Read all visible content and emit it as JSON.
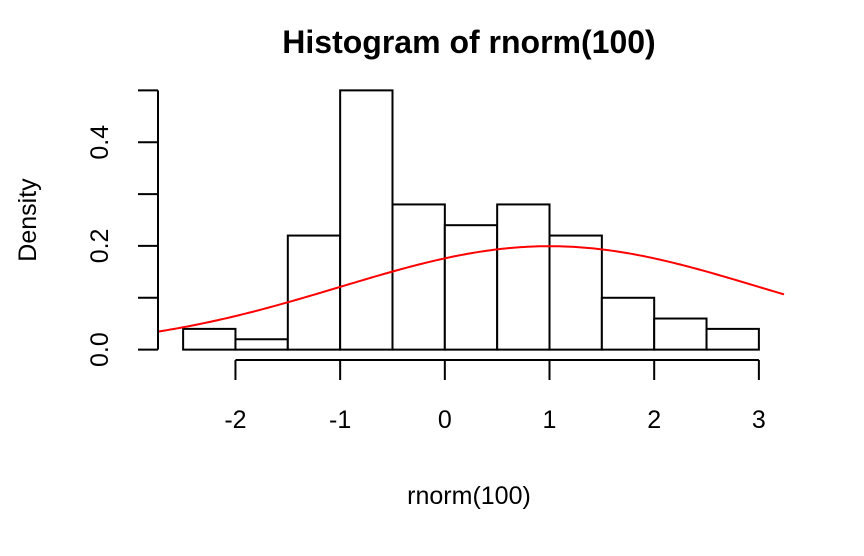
{
  "chart_data": {
    "type": "bar",
    "title": "Histogram of rnorm(100)",
    "xlabel": "rnorm(100)",
    "ylabel": "Density",
    "bins": [
      {
        "from": -2.5,
        "to": -2.0,
        "density": 0.04
      },
      {
        "from": -2.0,
        "to": -1.5,
        "density": 0.02
      },
      {
        "from": -1.5,
        "to": -1.0,
        "density": 0.22
      },
      {
        "from": -1.0,
        "to": -0.5,
        "density": 0.5
      },
      {
        "from": -0.5,
        "to": 0.0,
        "density": 0.28
      },
      {
        "from": 0.0,
        "to": 0.5,
        "density": 0.24
      },
      {
        "from": 0.5,
        "to": 1.0,
        "density": 0.28
      },
      {
        "from": 1.0,
        "to": 1.5,
        "density": 0.22
      },
      {
        "from": 1.5,
        "to": 2.0,
        "density": 0.1
      },
      {
        "from": 2.0,
        "to": 2.5,
        "density": 0.06
      },
      {
        "from": 2.5,
        "to": 3.0,
        "density": 0.04
      }
    ],
    "xticks": [
      -2,
      -1,
      0,
      1,
      2,
      3
    ],
    "xtick_labels": [
      "-2",
      "-1",
      "0",
      "1",
      "2",
      "3"
    ],
    "yticks": [
      0.0,
      0.1,
      0.2,
      0.3,
      0.4,
      0.5
    ],
    "ytick_label_values": [
      0.0,
      0.2,
      0.4
    ],
    "ytick_labels": [
      "0.0",
      "0.2",
      "0.4"
    ],
    "xlim": [
      -2.74,
      3.24
    ],
    "ylim": [
      -0.02,
      0.52
    ],
    "curve": {
      "function": "normal density",
      "mean": 1,
      "sd": 2,
      "color": "#ff0000",
      "x_range": [
        -2.74,
        3.24
      ]
    },
    "grid": false,
    "legend": "none"
  }
}
